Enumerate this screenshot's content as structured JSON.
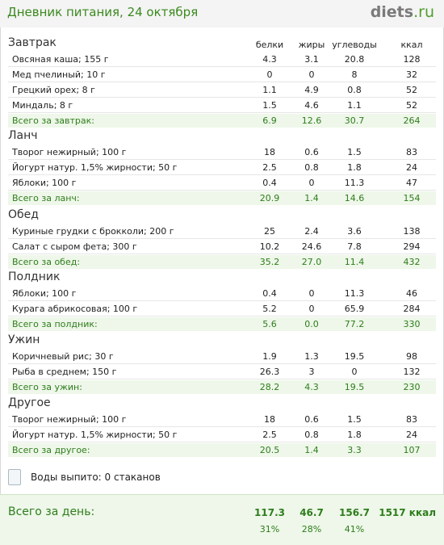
{
  "header": {
    "title": "Дневник питания, 24 октября",
    "logo_main": "diets",
    "logo_suffix": ".ru"
  },
  "columns": {
    "protein": "белки",
    "fat": "жиры",
    "carbs": "углеводы",
    "kcal": "ккал"
  },
  "sections": [
    {
      "title": "Завтрак",
      "items": [
        {
          "name": "Овсяная каша; 155 г",
          "protein": "4.3",
          "fat": "3.1",
          "carbs": "20.8",
          "kcal": "128"
        },
        {
          "name": "Мед пчелиный; 10 г",
          "protein": "0",
          "fat": "0",
          "carbs": "8",
          "kcal": "32"
        },
        {
          "name": "Грецкий орех; 8 г",
          "protein": "1.1",
          "fat": "4.9",
          "carbs": "0.8",
          "kcal": "52"
        },
        {
          "name": "Миндаль; 8 г",
          "protein": "1.5",
          "fat": "4.6",
          "carbs": "1.1",
          "kcal": "52"
        }
      ],
      "total": {
        "label": "Всего за завтрак:",
        "protein": "6.9",
        "fat": "12.6",
        "carbs": "30.7",
        "kcal": "264"
      }
    },
    {
      "title": "Ланч",
      "items": [
        {
          "name": "Творог нежирный; 100 г",
          "protein": "18",
          "fat": "0.6",
          "carbs": "1.5",
          "kcal": "83"
        },
        {
          "name": "Йогурт натур. 1,5% жирности; 50 г",
          "protein": "2.5",
          "fat": "0.8",
          "carbs": "1.8",
          "kcal": "24"
        },
        {
          "name": "Яблоки; 100 г",
          "protein": "0.4",
          "fat": "0",
          "carbs": "11.3",
          "kcal": "47"
        }
      ],
      "total": {
        "label": "Всего за ланч:",
        "protein": "20.9",
        "fat": "1.4",
        "carbs": "14.6",
        "kcal": "154"
      }
    },
    {
      "title": "Обед",
      "items": [
        {
          "name": "Куриные грудки с брокколи; 200 г",
          "protein": "25",
          "fat": "2.4",
          "carbs": "3.6",
          "kcal": "138"
        },
        {
          "name": "Салат с сыром фета; 300 г",
          "protein": "10.2",
          "fat": "24.6",
          "carbs": "7.8",
          "kcal": "294"
        }
      ],
      "total": {
        "label": "Всего за обед:",
        "protein": "35.2",
        "fat": "27.0",
        "carbs": "11.4",
        "kcal": "432"
      }
    },
    {
      "title": "Полдник",
      "items": [
        {
          "name": "Яблоки; 100 г",
          "protein": "0.4",
          "fat": "0",
          "carbs": "11.3",
          "kcal": "46"
        },
        {
          "name": "Курага абрикосовая; 100 г",
          "protein": "5.2",
          "fat": "0",
          "carbs": "65.9",
          "kcal": "284"
        }
      ],
      "total": {
        "label": "Всего за полдник:",
        "protein": "5.6",
        "fat": "0.0",
        "carbs": "77.2",
        "kcal": "330"
      }
    },
    {
      "title": "Ужин",
      "items": [
        {
          "name": "Коричневый рис; 30 г",
          "protein": "1.9",
          "fat": "1.3",
          "carbs": "19.5",
          "kcal": "98"
        },
        {
          "name": "Рыба в среднем; 150 г",
          "protein": "26.3",
          "fat": "3",
          "carbs": "0",
          "kcal": "132"
        }
      ],
      "total": {
        "label": "Всего за ужин:",
        "protein": "28.2",
        "fat": "4.3",
        "carbs": "19.5",
        "kcal": "230"
      }
    },
    {
      "title": "Другое",
      "items": [
        {
          "name": "Творог нежирный; 100 г",
          "protein": "18",
          "fat": "0.6",
          "carbs": "1.5",
          "kcal": "83"
        },
        {
          "name": "Йогурт натур. 1,5% жирности; 50 г",
          "protein": "2.5",
          "fat": "0.8",
          "carbs": "1.8",
          "kcal": "24"
        }
      ],
      "total": {
        "label": "Всего за другое:",
        "protein": "20.5",
        "fat": "1.4",
        "carbs": "3.3",
        "kcal": "107"
      }
    }
  ],
  "water": {
    "label": "Воды выпито: 0 стаканов",
    "icon": "glass-icon"
  },
  "day_total": {
    "label": "Всего за день:",
    "protein": "117.3",
    "fat": "46.7",
    "carbs": "156.7",
    "kcal": "1517 ккал",
    "protein_pct": "31%",
    "fat_pct": "28%",
    "carbs_pct": "41%"
  },
  "colors": {
    "accent_green": "#2e7d1c",
    "total_bg": "#eef7e9"
  }
}
